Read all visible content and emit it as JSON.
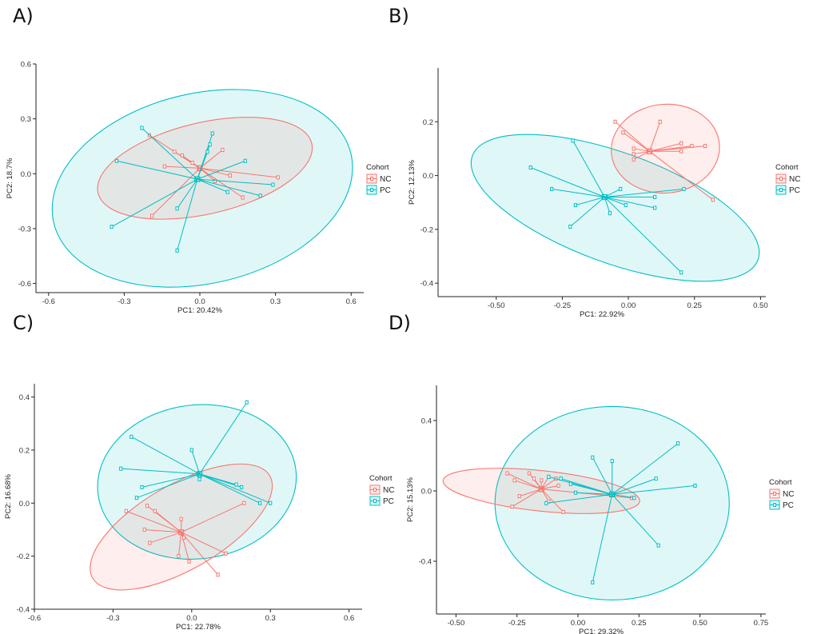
{
  "figure": {
    "colors": {
      "NC": "#F8766D",
      "PC": "#00BFC4"
    },
    "legend": {
      "title": "Cohort",
      "items": [
        "NC",
        "PC"
      ]
    }
  },
  "chart_data": [
    {
      "type": "scatter",
      "panel": "A)",
      "xlabel": "PC1: 20.42%",
      "ylabel": "PC2: 18.7%",
      "xlim": [
        -0.65,
        0.65
      ],
      "ylim": [
        -0.65,
        0.6
      ],
      "xticks": [
        -0.6,
        -0.3,
        0.0,
        0.3,
        0.6
      ],
      "yticks": [
        -0.6,
        -0.3,
        0.0,
        0.3,
        0.6
      ],
      "xtick_labels": [
        "-0.6",
        "-0.3",
        "0.0",
        "0.3",
        "0.6"
      ],
      "ytick_labels": [
        "-0.6",
        "-0.3",
        "0.0",
        "0.3",
        "0.6"
      ],
      "series": [
        {
          "name": "NC",
          "centroid": [
            0.0,
            0.03
          ],
          "ellipse": {
            "center": [
              0.02,
              0.03
            ],
            "rx": 0.435,
            "ry": 0.25,
            "angle": -13
          },
          "points": [
            [
              -0.2,
              0.21
            ],
            [
              -0.1,
              0.12
            ],
            [
              -0.07,
              0.1
            ],
            [
              0.09,
              0.13
            ],
            [
              -0.14,
              0.04
            ],
            [
              0.12,
              -0.01
            ],
            [
              0.31,
              -0.02
            ],
            [
              0.06,
              -0.04
            ],
            [
              0.17,
              -0.13
            ],
            [
              -0.19,
              -0.23
            ],
            [
              -0.03,
              0.06
            ]
          ]
        },
        {
          "name": "PC",
          "centroid": [
            -0.01,
            -0.03
          ],
          "ellipse": {
            "center": [
              0.01,
              -0.08
            ],
            "rx": 0.605,
            "ry": 0.52,
            "angle": -13
          },
          "points": [
            [
              -0.23,
              0.25
            ],
            [
              -0.33,
              0.07
            ],
            [
              -0.35,
              -0.29
            ],
            [
              0.05,
              0.22
            ],
            [
              0.04,
              0.16
            ],
            [
              0.18,
              0.07
            ],
            [
              0.29,
              -0.06
            ],
            [
              0.24,
              -0.12
            ],
            [
              0.11,
              -0.1
            ],
            [
              -0.09,
              -0.19
            ],
            [
              -0.09,
              -0.42
            ],
            [
              0.03,
              0.12
            ]
          ]
        }
      ]
    },
    {
      "type": "scatter",
      "panel": "B)",
      "xlabel": "PC1: 22.92%",
      "ylabel": "PC2: 12.13%",
      "xlim": [
        -0.72,
        0.52
      ],
      "ylim": [
        -0.45,
        0.4
      ],
      "xticks": [
        -0.5,
        -0.25,
        0.0,
        0.25,
        0.5
      ],
      "yticks": [
        -0.4,
        -0.2,
        0.0,
        0.2
      ],
      "xtick_labels": [
        "-0.50",
        "-0.25",
        "0.00",
        "0.25",
        "0.50"
      ],
      "ytick_labels": [
        "-0.4",
        "-0.2",
        "0.0",
        "0.2"
      ],
      "series": [
        {
          "name": "NC",
          "centroid": [
            0.08,
            0.09
          ],
          "ellipse": {
            "center": [
              0.14,
              0.1
            ],
            "rx": 0.205,
            "ry": 0.165,
            "angle": -5
          },
          "points": [
            [
              -0.05,
              0.2
            ],
            [
              -0.02,
              0.16
            ],
            [
              0.12,
              0.2
            ],
            [
              0.2,
              0.12
            ],
            [
              0.29,
              0.11
            ],
            [
              0.24,
              0.11
            ],
            [
              0.2,
              0.09
            ],
            [
              0.32,
              -0.09
            ],
            [
              0.02,
              0.1
            ],
            [
              0.02,
              0.08
            ],
            [
              0.02,
              0.06
            ]
          ]
        },
        {
          "name": "PC",
          "centroid": [
            -0.09,
            -0.08
          ],
          "ellipse": {
            "center": [
              -0.05,
              -0.12
            ],
            "rx": 0.575,
            "ry": 0.205,
            "angle": 20
          },
          "points": [
            [
              -0.21,
              0.13
            ],
            [
              -0.37,
              0.03
            ],
            [
              -0.29,
              -0.05
            ],
            [
              -0.2,
              -0.11
            ],
            [
              -0.22,
              -0.19
            ],
            [
              -0.07,
              -0.14
            ],
            [
              0.1,
              -0.08
            ],
            [
              0.1,
              -0.12
            ],
            [
              0.2,
              -0.36
            ],
            [
              0.21,
              -0.05
            ],
            [
              -0.03,
              -0.05
            ],
            [
              -0.01,
              -0.11
            ]
          ]
        }
      ]
    },
    {
      "type": "scatter",
      "panel": "C)",
      "xlabel": "PC1: 22.78%",
      "ylabel": "PC2: 16.68%",
      "xlim": [
        -0.6,
        0.65
      ],
      "ylim": [
        -0.4,
        0.45
      ],
      "xticks": [
        -0.6,
        -0.3,
        0.0,
        0.3,
        0.6
      ],
      "yticks": [
        -0.4,
        -0.2,
        0.0,
        0.2,
        0.4
      ],
      "xtick_labels": [
        "-0.6",
        "-0.3",
        "0.0",
        "0.3",
        "0.6"
      ],
      "ytick_labels": [
        "-0.4",
        "-0.2",
        "0.0",
        "0.2",
        "0.4"
      ],
      "series": [
        {
          "name": "NC",
          "centroid": [
            -0.04,
            -0.11
          ],
          "ellipse": {
            "center": [
              -0.04,
              -0.09
            ],
            "rx": 0.39,
            "ry": 0.16,
            "angle": -30
          },
          "points": [
            [
              -0.25,
              -0.03
            ],
            [
              -0.17,
              -0.01
            ],
            [
              -0.14,
              -0.03
            ],
            [
              -0.18,
              -0.1
            ],
            [
              -0.16,
              -0.15
            ],
            [
              -0.04,
              -0.06
            ],
            [
              -0.03,
              -0.13
            ],
            [
              -0.05,
              -0.2
            ],
            [
              -0.01,
              -0.22
            ],
            [
              0.13,
              -0.19
            ],
            [
              0.1,
              -0.27
            ],
            [
              0.2,
              0.0
            ]
          ]
        },
        {
          "name": "PC",
          "centroid": [
            0.03,
            0.11
          ],
          "ellipse": {
            "center": [
              0.02,
              0.08
            ],
            "rx": 0.38,
            "ry": 0.29,
            "angle": -7
          },
          "points": [
            [
              -0.23,
              0.25
            ],
            [
              -0.27,
              0.13
            ],
            [
              -0.19,
              0.06
            ],
            [
              -0.21,
              0.02
            ],
            [
              0.0,
              0.2
            ],
            [
              0.21,
              0.38
            ],
            [
              0.17,
              0.07
            ],
            [
              0.19,
              0.06
            ],
            [
              0.26,
              0.0
            ],
            [
              0.3,
              0.0
            ],
            [
              0.03,
              0.1
            ],
            [
              0.03,
              0.09
            ]
          ]
        }
      ]
    },
    {
      "type": "scatter",
      "panel": "D)",
      "xlabel": "PC1: 29.32%",
      "ylabel": "PC2: 15.13%",
      "xlim": [
        -0.58,
        0.77
      ],
      "ylim": [
        -0.7,
        0.6
      ],
      "xticks": [
        -0.5,
        -0.25,
        0.0,
        0.25,
        0.5,
        0.75
      ],
      "yticks": [
        -0.4,
        0.0,
        0.4
      ],
      "xtick_labels": [
        "-0.50",
        "-0.25",
        "0.00",
        "0.25",
        "0.50",
        "0.75"
      ],
      "ytick_labels": [
        "-0.4",
        "0.0",
        "0.4"
      ],
      "series": [
        {
          "name": "NC",
          "centroid": [
            -0.15,
            0.01
          ],
          "ellipse": {
            "center": [
              -0.15,
              0.0
            ],
            "rx": 0.405,
            "ry": 0.115,
            "angle": 6
          },
          "points": [
            [
              -0.29,
              0.1
            ],
            [
              -0.26,
              0.06
            ],
            [
              -0.27,
              -0.09
            ],
            [
              -0.24,
              -0.03
            ],
            [
              -0.2,
              0.1
            ],
            [
              -0.18,
              0.07
            ],
            [
              -0.15,
              0.06
            ],
            [
              -0.12,
              0.08
            ],
            [
              -0.09,
              0.07
            ],
            [
              -0.08,
              0.03
            ],
            [
              -0.12,
              -0.06
            ],
            [
              -0.06,
              -0.12
            ],
            [
              0.22,
              -0.04
            ]
          ]
        },
        {
          "name": "PC",
          "centroid": [
            0.14,
            -0.02
          ],
          "ellipse": {
            "center": [
              0.14,
              -0.07
            ],
            "rx": 0.48,
            "ry": 0.55,
            "angle": 0
          },
          "points": [
            [
              -0.12,
              0.08
            ],
            [
              -0.07,
              0.07
            ],
            [
              -0.03,
              0.04
            ],
            [
              -0.13,
              -0.07
            ],
            [
              -0.01,
              -0.01
            ],
            [
              0.06,
              0.19
            ],
            [
              0.14,
              0.17
            ],
            [
              0.23,
              -0.04
            ],
            [
              0.33,
              -0.31
            ],
            [
              0.32,
              0.07
            ],
            [
              0.41,
              0.27
            ],
            [
              0.48,
              0.03
            ],
            [
              0.06,
              -0.52
            ]
          ]
        }
      ]
    }
  ]
}
